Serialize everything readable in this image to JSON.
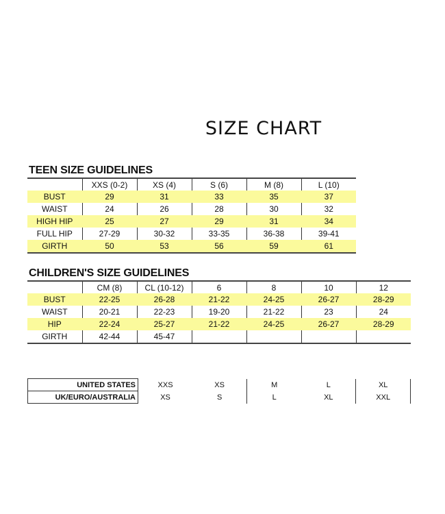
{
  "title": "SIZE CHART",
  "teen": {
    "heading": "TEEN SIZE GUIDELINES",
    "columns": [
      "",
      "XXS (0-2)",
      "XS (4)",
      "S (6)",
      "M (8)",
      "L (10)"
    ],
    "rows": [
      {
        "label": "BUST",
        "values": [
          "29",
          "31",
          "33",
          "35",
          "37"
        ],
        "highlight": true
      },
      {
        "label": "WAIST",
        "values": [
          "24",
          "26",
          "28",
          "30",
          "32"
        ],
        "highlight": false
      },
      {
        "label": "HIGH HIP",
        "values": [
          "25",
          "27",
          "29",
          "31",
          "34"
        ],
        "highlight": true
      },
      {
        "label": "FULL HIP",
        "values": [
          "27-29",
          "30-32",
          "33-35",
          "36-38",
          "39-41"
        ],
        "highlight": false
      },
      {
        "label": "GIRTH",
        "values": [
          "50",
          "53",
          "56",
          "59",
          "61"
        ],
        "highlight": true
      }
    ]
  },
  "children": {
    "heading": "CHILDREN'S SIZE GUIDELINES",
    "columns": [
      "",
      "CM (8)",
      "CL (10-12)",
      "6",
      "8",
      "10",
      "12"
    ],
    "rows": [
      {
        "label": "BUST",
        "values": [
          "22-25",
          "26-28",
          "21-22",
          "24-25",
          "26-27",
          "28-29"
        ],
        "highlight": true
      },
      {
        "label": "WAIST",
        "values": [
          "20-21",
          "22-23",
          "19-20",
          "21-22",
          "23",
          "24"
        ],
        "highlight": false
      },
      {
        "label": "HIP",
        "values": [
          "22-24",
          "25-27",
          "21-22",
          "24-25",
          "26-27",
          "28-29"
        ],
        "highlight": true
      },
      {
        "label": "GIRTH",
        "values": [
          "42-44",
          "45-47",
          "",
          "",
          "",
          ""
        ],
        "highlight": false
      }
    ]
  },
  "conversion": {
    "rows": [
      {
        "label": "UNITED STATES",
        "values": [
          "XXS",
          "XS",
          "M",
          "L",
          "XL"
        ]
      },
      {
        "label": "UK/EURO/AUSTRALIA",
        "values": [
          "XS",
          "S",
          "L",
          "XL",
          "XXL"
        ]
      }
    ]
  },
  "colors": {
    "highlight": "#fbfa9c",
    "border": "#333333"
  }
}
